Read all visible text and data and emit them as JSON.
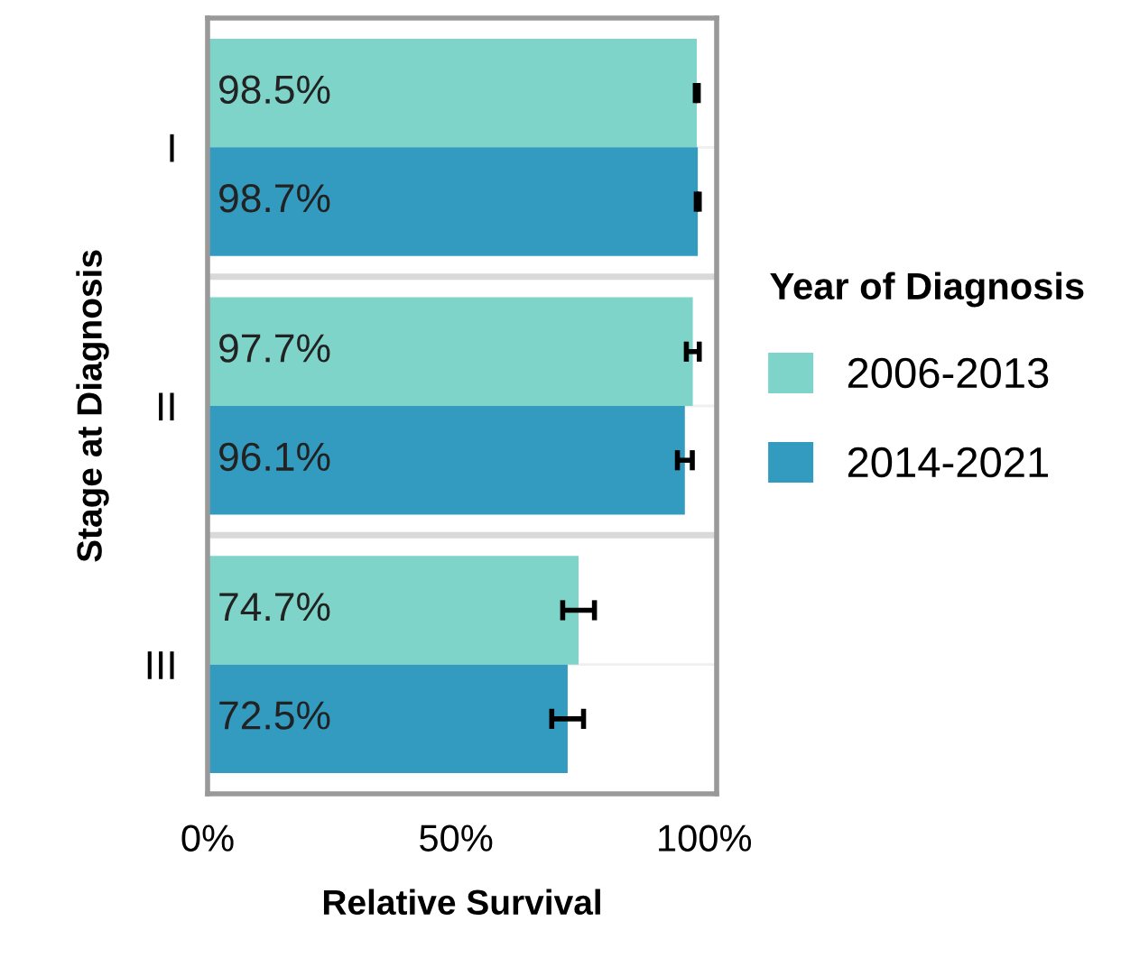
{
  "chart_data": {
    "type": "bar",
    "orientation": "horizontal",
    "xlabel": "Relative Survival",
    "ylabel": "Stage at Diagnosis",
    "legend_title": "Year of Diagnosis",
    "legend": "right",
    "categories": [
      "I",
      "II",
      "III"
    ],
    "series": [
      {
        "name": "2006-2013",
        "color": "#7fd4c9",
        "values": [
          98.5,
          97.7,
          74.7
        ],
        "errors": [
          0.3,
          1.3,
          3.2
        ],
        "value_labels": [
          "98.5%",
          "97.7%",
          "74.7%"
        ]
      },
      {
        "name": "2014-2021",
        "color": "#339bc0",
        "values": [
          98.7,
          96.1,
          72.5
        ],
        "errors": [
          0.3,
          1.5,
          3.2
        ],
        "value_labels": [
          "98.7%",
          "96.1%",
          "72.5%"
        ]
      }
    ],
    "xlim": [
      0,
      102.5
    ],
    "xticks": [
      {
        "value": 0,
        "label": "0%"
      },
      {
        "value": 50,
        "label": "50%"
      },
      {
        "value": 100,
        "label": "100%"
      }
    ],
    "grid": "y"
  }
}
